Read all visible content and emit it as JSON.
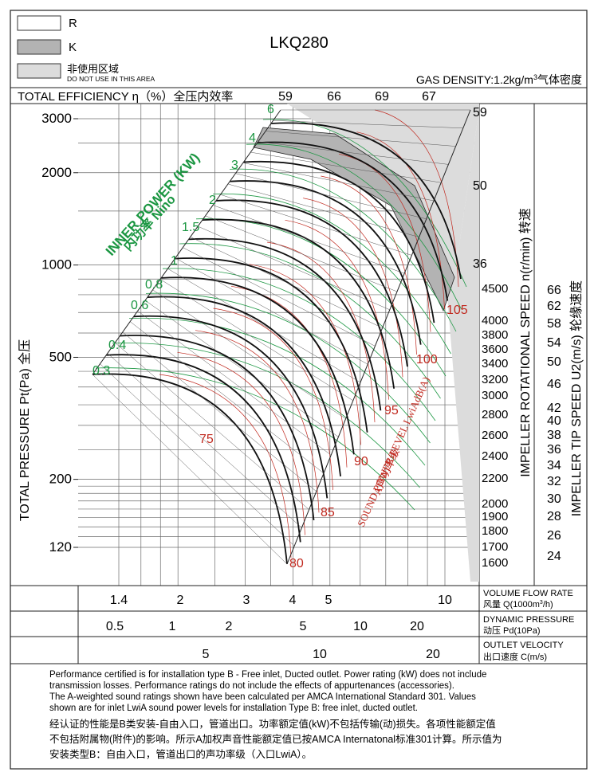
{
  "legend": {
    "items": [
      {
        "key": "R",
        "swatch": "#ffffff"
      },
      {
        "key": "K",
        "swatch": "#b3b3b3"
      },
      {
        "key": "非使用区域",
        "sub": "DO NOT USE IN THIS AREA",
        "swatch": "#dcdcdc"
      }
    ]
  },
  "header": {
    "model": "LKQ280",
    "gas_density": "GAS DENSITY:1.2kg/m",
    "gas_density_sup": "3",
    "gas_density_cn": "气体密度"
  },
  "efficiency": {
    "label": "TOTAL EFFICIENCY η（%）全压内效率",
    "values": [
      "59",
      "66",
      "69",
      "67"
    ],
    "right_values": [
      "59",
      "50",
      "36"
    ]
  },
  "chart_data": {
    "type": "line",
    "title": "LKQ280",
    "xlabel": "VOLUME FLOW RATE 风量 Q(1000m³/h)",
    "ylabel": "TOTAL PRESSURE Pt(Pa) 全压",
    "x_scale": "log",
    "y_scale": "log",
    "xlim": [
      1.2,
      12
    ],
    "ylim": [
      100,
      3300
    ],
    "x_ticks": [
      1.4,
      2,
      3,
      4,
      5,
      10
    ],
    "y_ticks": [
      120,
      200,
      500,
      1000,
      2000,
      3000
    ],
    "rotational_speed_label": "IMPELLER ROTATIONAL SPEED n(r/min) 转速",
    "rotational_speed_ticks": [
      "4500",
      "4000",
      "3800",
      "3600",
      "3400",
      "3200",
      "3000",
      "2800",
      "2600",
      "2400",
      "2200",
      "2000",
      "1900",
      "1800",
      "1700",
      "1600"
    ],
    "tip_speed_label": "IMPELLER TIP SPEED U2(m/s) 轮缘速度",
    "tip_speed_ticks": [
      "66",
      "62",
      "58",
      "54",
      "50",
      "46",
      "42",
      "40",
      "38",
      "36",
      "34",
      "32",
      "30",
      "28",
      "26",
      "24"
    ],
    "power_label_en": "INNER POWER (KW)",
    "power_label_cn": "内功率 Nino",
    "power_values": [
      "0.3",
      "0.4",
      "0.6",
      "0.8",
      "1",
      "1.5",
      "2",
      "3",
      "4",
      "6"
    ],
    "sound_label_en": "SOUND POWER LEVEL LwiAdB(A)",
    "sound_label_cn": "A声功率级",
    "sound_values": [
      "75",
      "80",
      "85",
      "90",
      "95",
      "100",
      "105"
    ],
    "dynamic_pressure_label": "DYNAMIC PRESSURE",
    "dynamic_pressure_label_cn": "动压 Pd(10Pa)",
    "dynamic_pressure_ticks": [
      "0.5",
      "1",
      "2",
      "5",
      "10",
      "20"
    ],
    "outlet_velocity_label": "OUTLET VELOCITY",
    "outlet_velocity_label_cn": "出口速度 C(m/s)",
    "outlet_velocity_ticks": [
      "5",
      "10",
      "20"
    ],
    "volume_flow_label": "VOLUME FLOW RATE",
    "volume_flow_label_cn": "风量 Q(1000m",
    "volume_flow_label_cn_sup": "3",
    "volume_flow_label_cn_end": "/h)"
  },
  "notes": {
    "en1": "Performance certified is for installation type B - Free inlet, Ducted outlet. Power rating (kW) does not include",
    "en2": "transmission losses. Performance ratings do not include the effects of appurtenances (accessories).",
    "en3": "The A-weighted sound ratings shown have been calculated per AMCA International Standard 301. Values",
    "en4": "shown are for inlet LwiA sound power levels for installation Type B: free inlet, ducted outlet.",
    "cn1": "经认证的性能是B类安装-自由入口，管道出口。功率额定值(kW)不包括传输(动)损失。各项性能额定值",
    "cn2": "不包括附属物(附件)的影响。所示A加权声音性能额定值已按AMCA Internatonal标准301计算。所示值为",
    "cn3": "安装类型B：自由入口，管道出口的声功率级（入口LwiA）。"
  },
  "colors": {
    "k_zone": "#b3b3b3",
    "no_use_zone": "#dcdcdc",
    "power_green": "#1a9641",
    "sound_red": "#c0281e"
  }
}
